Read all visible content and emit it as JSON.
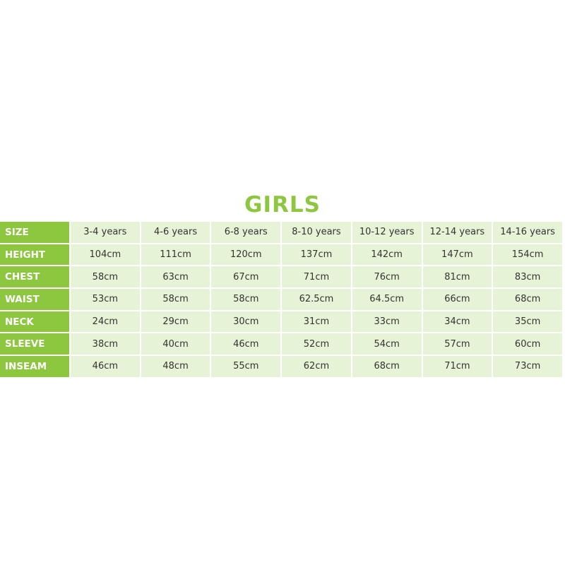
{
  "title": "GIRLS",
  "colors": {
    "accent": "#8dc63f",
    "cell_bg": "#e7f3d6"
  },
  "rows": [
    {
      "label": "SIZE",
      "values": [
        "3-4 years",
        "4-6 years",
        "6-8 years",
        "8-10 years",
        "10-12 years",
        "12-14 years",
        "14-16 years"
      ]
    },
    {
      "label": "HEIGHT",
      "values": [
        "104cm",
        "111cm",
        "120cm",
        "137cm",
        "142cm",
        "147cm",
        "154cm"
      ]
    },
    {
      "label": "CHEST",
      "values": [
        "58cm",
        "63cm",
        "67cm",
        "71cm",
        "76cm",
        "81cm",
        "83cm"
      ]
    },
    {
      "label": "WAIST",
      "values": [
        "53cm",
        "58cm",
        "58cm",
        "62.5cm",
        "64.5cm",
        "66cm",
        "68cm"
      ]
    },
    {
      "label": "NECK",
      "values": [
        "24cm",
        "29cm",
        "30cm",
        "31cm",
        "33cm",
        "34cm",
        "35cm"
      ]
    },
    {
      "label": "SLEEVE",
      "values": [
        "38cm",
        "40cm",
        "46cm",
        "52cm",
        "54cm",
        "57cm",
        "60cm"
      ]
    },
    {
      "label": "INSEAM",
      "values": [
        "46cm",
        "48cm",
        "55cm",
        "62cm",
        "68cm",
        "71cm",
        "73cm"
      ]
    }
  ]
}
